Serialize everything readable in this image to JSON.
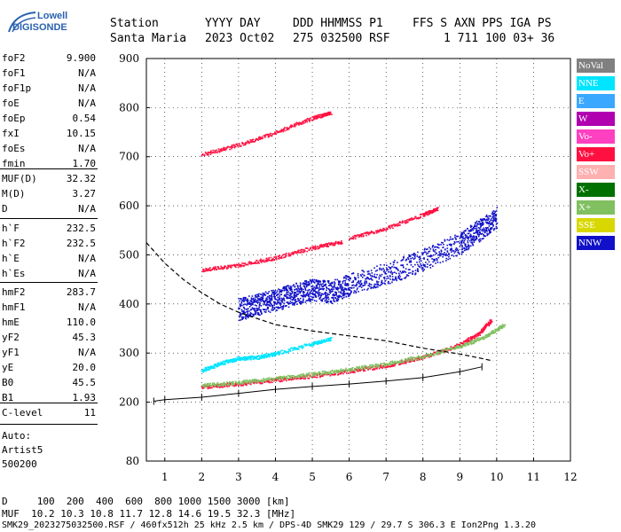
{
  "logo": {
    "line1": "Lowell",
    "line2": "DIGISONDE"
  },
  "header": {
    "row1": [
      {
        "text": "Station",
        "x": 124
      },
      {
        "text": "YYYY DAY",
        "x": 231
      },
      {
        "text": "DDD HHMMSS P1",
        "x": 330
      },
      {
        "text": "FFS S AXN PPS IGA PS",
        "x": 465
      }
    ],
    "row2": [
      {
        "text": "Santa Maria",
        "x": 124
      },
      {
        "text": "2023 Oct02",
        "x": 231
      },
      {
        "text": "275 032500 RSF",
        "x": 330
      },
      {
        "text": "1 711 100 03+ 36",
        "x": 500
      }
    ]
  },
  "params": {
    "group1": [
      {
        "name": "foF2",
        "value": "9.900"
      },
      {
        "name": "foF1",
        "value": "N/A"
      },
      {
        "name": "foF1p",
        "value": "N/A"
      },
      {
        "name": "foE",
        "value": "N/A"
      },
      {
        "name": "foEp",
        "value": "0.54"
      },
      {
        "name": "fxI",
        "value": "10.15"
      },
      {
        "name": "foEs",
        "value": "N/A"
      },
      {
        "name": "fmin",
        "value": "1.70"
      }
    ],
    "group2": [
      {
        "name": "MUF(D)",
        "value": "32.32"
      },
      {
        "name": "M(D)",
        "value": "3.27"
      },
      {
        "name": "D",
        "value": "N/A"
      }
    ],
    "group3": [
      {
        "name": "h`F",
        "value": "232.5"
      },
      {
        "name": "h`F2",
        "value": "232.5"
      },
      {
        "name": "h`E",
        "value": "N/A"
      },
      {
        "name": "h`Es",
        "value": "N/A"
      }
    ],
    "group4": [
      {
        "name": "hmF2",
        "value": "283.7"
      },
      {
        "name": "hmF1",
        "value": "N/A"
      },
      {
        "name": "hmE",
        "value": "110.0"
      },
      {
        "name": "yF2",
        "value": "45.3"
      },
      {
        "name": "yF1",
        "value": "N/A"
      },
      {
        "name": "yE",
        "value": "20.0"
      },
      {
        "name": "B0",
        "value": "45.5"
      },
      {
        "name": "B1",
        "value": "1.93"
      }
    ],
    "group5": [
      {
        "name": "C-level",
        "value": "11"
      }
    ],
    "autoscaling": [
      "Auto:",
      "Artist5",
      "500200"
    ]
  },
  "legend": [
    {
      "label": "NoVal",
      "color": "#808080"
    },
    {
      "label": "NNE",
      "color": "#00e5ff"
    },
    {
      "label": "E",
      "color": "#3aa8ff"
    },
    {
      "label": "W",
      "color": "#b000b0"
    },
    {
      "label": "Vo-",
      "color": "#ff40c0"
    },
    {
      "label": "Vo+",
      "color": "#ff1040"
    },
    {
      "label": "SSW",
      "color": "#ffb0b0"
    },
    {
      "label": "X-",
      "color": "#007000"
    },
    {
      "label": "X+",
      "color": "#80c060"
    },
    {
      "label": "SSE",
      "color": "#d8d800"
    },
    {
      "label": "NNW",
      "color": "#1010c8"
    }
  ],
  "bottom": {
    "distance_row": "D     100  200  400  600  800 1000 1500 3000 [km]",
    "muf_row": "MUF  10.2 10.3 10.8 11.7 12.8 14.6 19.5 32.3 [MHz]",
    "footer": "SMK29_2023275032500.RSF / 460fx512h 25 kHz 2.5 km / DPS-4D SMK29 129 / 29.7 S 306.3 E Ion2Png 1.3.20"
  },
  "chart_data": {
    "type": "scatter",
    "title": "",
    "xlabel": "",
    "ylabel": "",
    "xlim": [
      0.5,
      12
    ],
    "ylim": [
      80,
      900
    ],
    "xticks": [
      1,
      2,
      3,
      4,
      5,
      6,
      7,
      8,
      9,
      10,
      11,
      12
    ],
    "yticks": [
      80,
      200,
      300,
      400,
      500,
      600,
      700,
      800,
      900
    ],
    "grid": true,
    "legend_position": "right",
    "series": [
      {
        "color": "#ff1040",
        "points": [
          [
            2.0,
            232
          ],
          [
            3.0,
            238
          ],
          [
            4.0,
            246
          ],
          [
            5.0,
            254
          ],
          [
            6.0,
            264
          ],
          [
            7.0,
            275
          ],
          [
            8.0,
            292
          ],
          [
            9.0,
            318
          ],
          [
            9.5,
            340
          ],
          [
            9.85,
            368
          ]
        ]
      },
      {
        "color": "#80c060",
        "points": [
          [
            2.0,
            235
          ],
          [
            3.0,
            241
          ],
          [
            4.0,
            249
          ],
          [
            5.0,
            258
          ],
          [
            6.0,
            268
          ],
          [
            7.0,
            279
          ],
          [
            8.0,
            294
          ],
          [
            9.0,
            315
          ],
          [
            9.7,
            335
          ],
          [
            10.2,
            358
          ]
        ]
      },
      {
        "color": "#ff1040",
        "points": [
          [
            2.0,
            470
          ],
          [
            3.0,
            480
          ],
          [
            4.0,
            495
          ],
          [
            5.0,
            515
          ],
          [
            5.8,
            528
          ]
        ]
      },
      {
        "color": "#ff1040",
        "points": [
          [
            2.0,
            705
          ],
          [
            3.0,
            725
          ],
          [
            4.0,
            750
          ],
          [
            5.0,
            780
          ],
          [
            5.5,
            790
          ]
        ]
      },
      {
        "color": "#ff1040",
        "points": [
          [
            6.0,
            535
          ],
          [
            7.0,
            555
          ],
          [
            8.0,
            583
          ],
          [
            8.4,
            595
          ]
        ]
      },
      {
        "color": "#1010c8",
        "points": [
          [
            3.0,
            390
          ],
          [
            3.5,
            400
          ],
          [
            4.0,
            410
          ],
          [
            4.5,
            420
          ],
          [
            5.0,
            430
          ],
          [
            5.5,
            425
          ],
          [
            6.0,
            440
          ],
          [
            7.0,
            462
          ],
          [
            8.0,
            490
          ],
          [
            9.0,
            525
          ],
          [
            9.5,
            550
          ],
          [
            10.0,
            578
          ]
        ]
      },
      {
        "color": "#00e5ff",
        "points": [
          [
            2.0,
            265
          ],
          [
            2.5,
            280
          ],
          [
            3.0,
            290
          ],
          [
            3.5,
            292
          ],
          [
            4.0,
            300
          ],
          [
            5.0,
            320
          ],
          [
            5.5,
            330
          ]
        ]
      }
    ],
    "profile": [
      [
        0.5,
        525
      ],
      [
        1.0,
        483
      ],
      [
        1.5,
        450
      ],
      [
        2.0,
        423
      ],
      [
        2.5,
        400
      ],
      [
        3.0,
        383
      ],
      [
        4.0,
        355
      ],
      [
        5.0,
        340
      ],
      [
        6.0,
        330
      ],
      [
        7.0,
        318
      ],
      [
        8.0,
        305
      ],
      [
        9.0,
        292
      ],
      [
        9.6,
        284
      ],
      [
        9.9,
        284
      ],
      [
        9.6,
        272
      ],
      [
        9.0,
        262
      ],
      [
        8.0,
        250
      ],
      [
        7.0,
        243
      ],
      [
        6.0,
        237
      ],
      [
        5.0,
        232
      ],
      [
        4.0,
        226
      ],
      [
        3.0,
        218
      ],
      [
        2.0,
        210
      ],
      [
        1.0,
        205
      ],
      [
        0.7,
        202
      ]
    ],
    "dashed_curve": [
      [
        0.5,
        525
      ],
      [
        1.0,
        483
      ],
      [
        1.5,
        450
      ],
      [
        2.0,
        423
      ],
      [
        2.5,
        400
      ],
      [
        3.0,
        383
      ],
      [
        4.0,
        358
      ],
      [
        5.0,
        345
      ],
      [
        6.0,
        335
      ],
      [
        7.0,
        325
      ],
      [
        8.0,
        310
      ],
      [
        9.0,
        298
      ],
      [
        9.6,
        289
      ],
      [
        9.9,
        284
      ]
    ]
  }
}
